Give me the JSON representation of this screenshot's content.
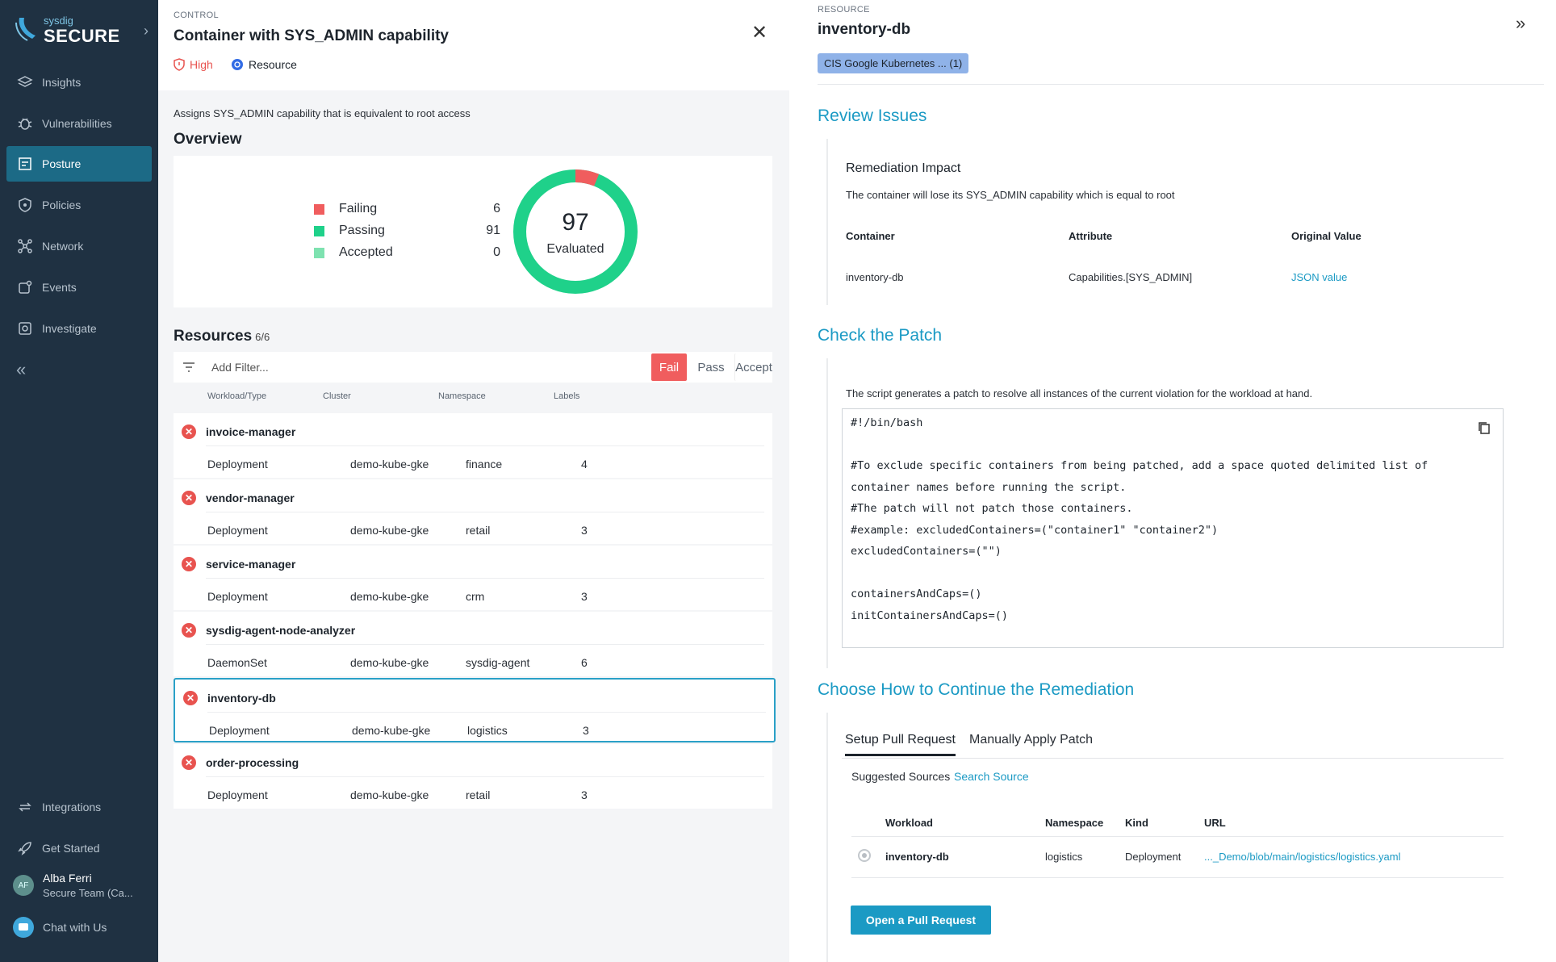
{
  "sidebar": {
    "brand_small": "sysdig",
    "brand_big": "SECURE",
    "items": [
      {
        "label": "Insights",
        "icon": "layers-icon"
      },
      {
        "label": "Vulnerabilities",
        "icon": "bug-icon"
      },
      {
        "label": "Posture",
        "icon": "checklist-icon",
        "active": true
      },
      {
        "label": "Policies",
        "icon": "shield-icon"
      },
      {
        "label": "Network",
        "icon": "network-icon"
      },
      {
        "label": "Events",
        "icon": "events-icon"
      },
      {
        "label": "Investigate",
        "icon": "investigate-icon"
      }
    ],
    "bottom_items": [
      {
        "label": "Integrations",
        "icon": "sync-icon"
      },
      {
        "label": "Get Started",
        "icon": "rocket-icon"
      }
    ],
    "user": {
      "initials": "AF",
      "name": "Alba Ferri",
      "team": "Secure Team (Ca..."
    },
    "chat_label": "Chat with Us"
  },
  "control": {
    "eyebrow": "CONTROL",
    "title": "Container with SYS_ADMIN capability",
    "severity": "High",
    "type": "Resource",
    "description": "Assigns SYS_ADMIN capability that is equivalent to root access"
  },
  "overview": {
    "title": "Overview",
    "legend": [
      {
        "label": "Failing",
        "value": "6",
        "color": "#f05d5e"
      },
      {
        "label": "Passing",
        "value": "91",
        "color": "#1fd18a"
      },
      {
        "label": "Accepted",
        "value": "0",
        "color": "#7ee2b0"
      }
    ],
    "total": "97",
    "total_label": "Evaluated"
  },
  "resources": {
    "title": "Resources",
    "count": "6/6",
    "filter_placeholder": "Add Filter...",
    "segments": [
      "Fail",
      "Pass",
      "Accept"
    ],
    "columns": [
      "Workload/Type",
      "Cluster",
      "Namespace",
      "Labels"
    ],
    "rows": [
      {
        "name": "invoice-manager",
        "type": "Deployment",
        "cluster": "demo-kube-gke",
        "namespace": "finance",
        "labels": "4"
      },
      {
        "name": "vendor-manager",
        "type": "Deployment",
        "cluster": "demo-kube-gke",
        "namespace": "retail",
        "labels": "3"
      },
      {
        "name": "service-manager",
        "type": "Deployment",
        "cluster": "demo-kube-gke",
        "namespace": "crm",
        "labels": "3"
      },
      {
        "name": "sysdig-agent-node-analyzer",
        "type": "DaemonSet",
        "cluster": "demo-kube-gke",
        "namespace": "sysdig-agent",
        "labels": "6"
      },
      {
        "name": "inventory-db",
        "type": "Deployment",
        "cluster": "demo-kube-gke",
        "namespace": "logistics",
        "labels": "3"
      },
      {
        "name": "order-processing",
        "type": "Deployment",
        "cluster": "demo-kube-gke",
        "namespace": "retail",
        "labels": "3"
      }
    ]
  },
  "resource_panel": {
    "eyebrow": "RESOURCE",
    "title": "inventory-db",
    "tag": "CIS Google Kubernetes ... (1)",
    "review_title": "Review Issues",
    "impact_title": "Remediation Impact",
    "impact_text": "The container will lose its SYS_ADMIN capability which is equal to root",
    "impact_columns": [
      "Container",
      "Attribute",
      "Original Value"
    ],
    "impact_row": {
      "container": "inventory-db",
      "attribute": "Capabilities.[SYS_ADMIN]",
      "value": "JSON value"
    },
    "patch_title": "Check the Patch",
    "patch_text": "The script generates a patch to resolve all instances of the current violation for the workload at hand.",
    "code_lines": [
      "#!/bin/bash",
      "",
      "#To exclude specific containers from being patched, add a space quoted delimited list of",
      "container names before running the script.",
      "#The patch will not patch those containers.",
      "#example: excludedContainers=(\"container1\" \"container2\")",
      "excludedContainers=(\"\")",
      "",
      "containersAndCaps=()",
      "initContainersAndCaps=()"
    ],
    "continue_title": "Choose How to Continue the Remediation",
    "tabs": [
      "Setup Pull Request",
      "Manually Apply Patch"
    ],
    "suggested_label": "Suggested Sources",
    "search_source": "Search Source",
    "pr_columns": [
      "Workload",
      "Namespace",
      "Kind",
      "URL"
    ],
    "pr_row": {
      "workload": "inventory-db",
      "namespace": "logistics",
      "kind": "Deployment",
      "url": "..._Demo/blob/main/logistics/logistics.yaml"
    },
    "open_pr_button": "Open a Pull Request"
  }
}
